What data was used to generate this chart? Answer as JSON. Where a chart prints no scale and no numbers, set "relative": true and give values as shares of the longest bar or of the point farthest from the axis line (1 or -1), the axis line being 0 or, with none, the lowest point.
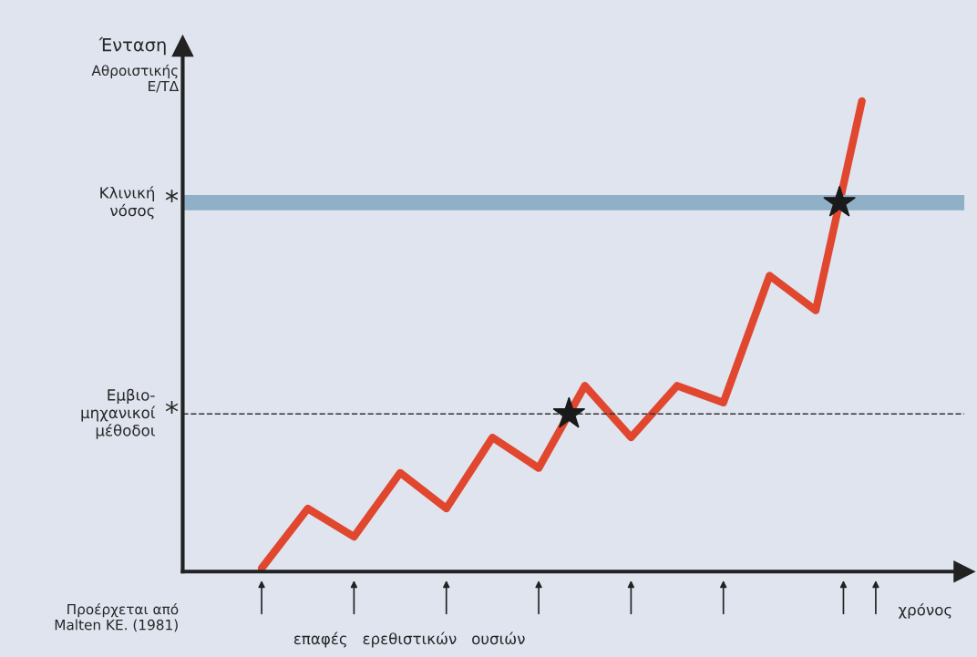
{
  "chart_data": {
    "type": "line",
    "relative": true,
    "ylabel": "Ένταση",
    "xlabel": "χρόνος",
    "categories": [
      null,
      null,
      null,
      null,
      null,
      null,
      null,
      null,
      null,
      null,
      null,
      null,
      null,
      null
    ],
    "series": [
      {
        "color": "#e0472e",
        "values": [
          0.007,
          0.134,
          0.074,
          0.21,
          0.134,
          0.285,
          0.22,
          0.395,
          0.285,
          0.395,
          0.359,
          0.629,
          0.555,
          1
        ]
      }
    ],
    "ref_lines": [
      {
        "axis": "y",
        "value": 0.784,
        "label": "Κλινική\nνόσος",
        "color": "#8fb0c6",
        "line_style": "solid"
      },
      {
        "axis": "y",
        "value": 0.335,
        "label": "Εμβιο-\nμηχανικοί\nμέθοδοι",
        "color": "#333333",
        "line_style": "dashed"
      }
    ],
    "annotations": [
      "Αθροιστικής\nΕ/ΤΔ",
      "Προέρχεται από\nMalten KE. (1981)",
      "επαφές   ερεθιστικών   ουσιών",
      "*",
      "*"
    ],
    "marker": "none",
    "legend": false
  }
}
